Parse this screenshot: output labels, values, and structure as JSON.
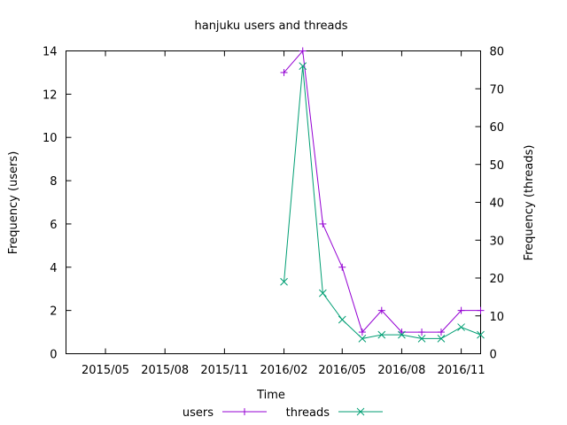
{
  "chart_data": {
    "type": "line",
    "title": "hanjuku users and threads",
    "xlabel": "Time",
    "ylabel": "Frequency (users)",
    "y2label": "Frequency (threads)",
    "xlim": [
      "2015-03-01",
      "2016-12-01"
    ],
    "ylim": [
      0,
      14
    ],
    "y2lim": [
      0,
      80
    ],
    "x_ticks": [
      "2015/05",
      "2015/08",
      "2015/11",
      "2016/02",
      "2016/05",
      "2016/08",
      "2016/11"
    ],
    "y_ticks": [
      0,
      2,
      4,
      6,
      8,
      10,
      12,
      14
    ],
    "y2_ticks": [
      0,
      10,
      20,
      30,
      40,
      50,
      60,
      70,
      80
    ],
    "grid": false,
    "legend": "bottom",
    "series": [
      {
        "name": "users",
        "axis": "left",
        "color": "#9400d3",
        "marker": "plus",
        "x": [
          "2016-02-01",
          "2016-03-01",
          "2016-04-01",
          "2016-05-01",
          "2016-06-01",
          "2016-07-01",
          "2016-08-01",
          "2016-09-01",
          "2016-10-01",
          "2016-11-01",
          "2016-12-01"
        ],
        "y": [
          13,
          14,
          6,
          4,
          1,
          2,
          1,
          1,
          1,
          2,
          2
        ]
      },
      {
        "name": "threads",
        "axis": "right",
        "color": "#009e73",
        "marker": "cross",
        "x": [
          "2016-02-01",
          "2016-03-01",
          "2016-04-01",
          "2016-05-01",
          "2016-06-01",
          "2016-07-01",
          "2016-08-01",
          "2016-09-01",
          "2016-10-01",
          "2016-11-01",
          "2016-12-01"
        ],
        "y": [
          19,
          76,
          16,
          9,
          4,
          5,
          5,
          4,
          4,
          7,
          5
        ]
      }
    ]
  }
}
